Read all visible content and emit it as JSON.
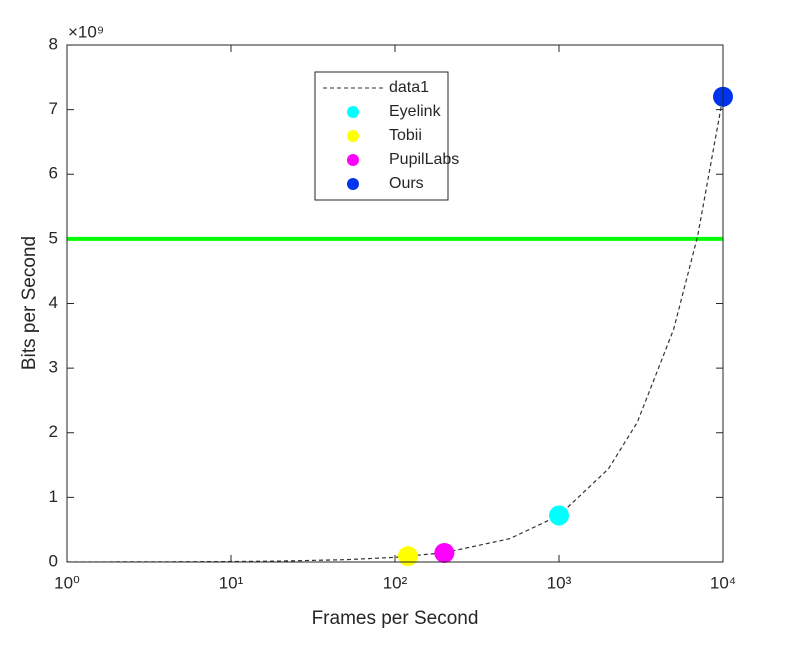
{
  "chart_data": {
    "type": "scatter",
    "xlabel": "Frames per Second",
    "ylabel": "Bits per Second",
    "y_multiplier": "×10⁹",
    "xscale": "log",
    "xlim": [
      1,
      10000
    ],
    "ylim": [
      0,
      8
    ],
    "xticks": [
      {
        "value": 1,
        "label": "10⁰"
      },
      {
        "value": 10,
        "label": "10¹"
      },
      {
        "value": 100,
        "label": "10²"
      },
      {
        "value": 1000,
        "label": "10³"
      },
      {
        "value": 10000,
        "label": "10⁴"
      }
    ],
    "yticks": [
      0,
      1,
      2,
      3,
      4,
      5,
      6,
      7,
      8
    ],
    "reference_lines": [
      {
        "value": 5,
        "color": "#00ff00"
      }
    ],
    "series": [
      {
        "name": "data1",
        "type": "line",
        "dashed": true,
        "color": "#333333",
        "x": [
          1,
          2,
          5,
          10,
          20,
          50,
          100,
          200,
          500,
          1000,
          2000,
          3000,
          5000,
          7000,
          10000
        ],
        "values": [
          0.00072,
          0.00144,
          0.0036,
          0.0072,
          0.0144,
          0.036,
          0.072,
          0.144,
          0.36,
          0.72,
          1.44,
          2.16,
          3.6,
          5.04,
          7.2
        ]
      },
      {
        "name": "Eyelink",
        "color": "#00ffff",
        "x": [
          1000
        ],
        "values": [
          0.72
        ]
      },
      {
        "name": "Tobii",
        "color": "#ffff00",
        "x": [
          120
        ],
        "values": [
          0.09
        ]
      },
      {
        "name": "PupilLabs",
        "color": "#ff00ff",
        "x": [
          200
        ],
        "values": [
          0.14
        ]
      },
      {
        "name": "Ours",
        "color": "#0033ee",
        "x": [
          10000
        ],
        "values": [
          7.2
        ]
      }
    ]
  }
}
